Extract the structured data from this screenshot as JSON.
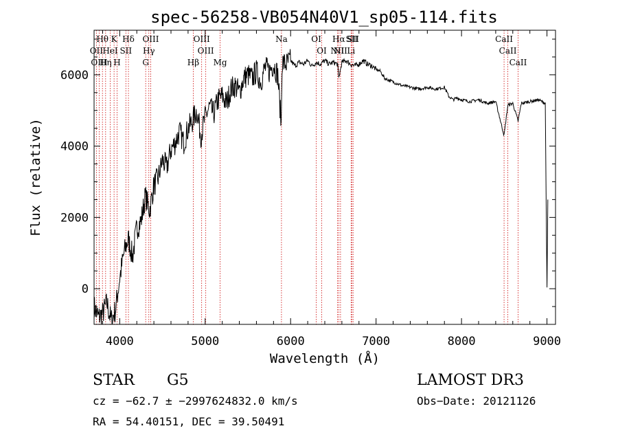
{
  "chart_data": {
    "type": "line",
    "title": "spec-56258-VB054N40V1_sp05-114.fits",
    "xlabel": "Wavelength (Å)",
    "ylabel": "Flux (relative)",
    "xlim": [
      3700,
      9100
    ],
    "ylim": [
      -1000,
      7250
    ],
    "xticks": [
      4000,
      5000,
      6000,
      7000,
      8000,
      9000
    ],
    "yticks": [
      0,
      2000,
      4000,
      6000
    ],
    "spectrum": {
      "name": "flux",
      "x": [
        3700,
        3750,
        3800,
        3850,
        3900,
        3950,
        4000,
        4050,
        4100,
        4150,
        4200,
        4250,
        4300,
        4350,
        4400,
        4450,
        4500,
        4550,
        4600,
        4650,
        4700,
        4750,
        4800,
        4850,
        4900,
        4950,
        5000,
        5050,
        5100,
        5150,
        5200,
        5250,
        5300,
        5350,
        5400,
        5450,
        5500,
        5550,
        5600,
        5650,
        5700,
        5750,
        5800,
        5850,
        5890,
        5900,
        5950,
        6000,
        6050,
        6100,
        6150,
        6200,
        6250,
        6300,
        6350,
        6400,
        6450,
        6500,
        6550,
        6563,
        6600,
        6650,
        6700,
        6750,
        6800,
        6850,
        6900,
        6950,
        7000,
        7050,
        7100,
        7200,
        7300,
        7400,
        7500,
        7600,
        7700,
        7800,
        7850,
        7900,
        7950,
        8000,
        8100,
        8200,
        8300,
        8400,
        8498,
        8542,
        8600,
        8662,
        8700,
        8800,
        8900,
        8980,
        9000,
        9010
      ],
      "y": [
        -500,
        -800,
        -700,
        -400,
        -900,
        -600,
        300,
        1000,
        1400,
        900,
        1700,
        1900,
        2600,
        2200,
        2900,
        3100,
        3600,
        3400,
        3900,
        4100,
        4400,
        4100,
        4500,
        4700,
        5000,
        4300,
        4800,
        5100,
        4900,
        5300,
        5400,
        5200,
        5600,
        5700,
        5500,
        5900,
        6000,
        5900,
        6100,
        5800,
        6200,
        6100,
        6300,
        6000,
        4600,
        6350,
        6300,
        6400,
        6250,
        6350,
        6300,
        6400,
        6250,
        6350,
        6300,
        6400,
        6300,
        6350,
        6300,
        5900,
        6350,
        6400,
        6300,
        6250,
        6300,
        6400,
        6300,
        6250,
        6150,
        6100,
        5900,
        5800,
        5700,
        5650,
        5600,
        5650,
        5600,
        5650,
        5400,
        5300,
        5350,
        5300,
        5250,
        5300,
        5200,
        5250,
        4300,
        5150,
        5200,
        4700,
        5200,
        5250,
        5300,
        5200,
        0,
        2500
      ]
    },
    "line_markers": [
      {
        "label": "Hθ",
        "wavelength": 3798
      },
      {
        "label": "OII",
        "wavelength": 3727
      },
      {
        "label": "OIII",
        "wavelength": 3760
      },
      {
        "label": "Hη",
        "wavelength": 3835
      },
      {
        "label": "HeI",
        "wavelength": 3889
      },
      {
        "label": "K",
        "wavelength": 3934
      },
      {
        "label": "H",
        "wavelength": 3969
      },
      {
        "label": "SII",
        "wavelength": 4072
      },
      {
        "label": "Hδ",
        "wavelength": 4102
      },
      {
        "label": "G",
        "wavelength": 4304
      },
      {
        "label": "Hγ",
        "wavelength": 4341
      },
      {
        "label": "OIII",
        "wavelength": 4363
      },
      {
        "label": "Hβ",
        "wavelength": 4861
      },
      {
        "label": "OIII",
        "wavelength": 4959
      },
      {
        "label": "OIII",
        "wavelength": 5007
      },
      {
        "label": "Mg",
        "wavelength": 5175
      },
      {
        "label": "Na",
        "wavelength": 5893
      },
      {
        "label": "OI",
        "wavelength": 6300
      },
      {
        "label": "OI",
        "wavelength": 6364
      },
      {
        "label": "NII",
        "wavelength": 6548
      },
      {
        "label": "Hα",
        "wavelength": 6563
      },
      {
        "label": "NII",
        "wavelength": 6584
      },
      {
        "label": "Li",
        "wavelength": 6708
      },
      {
        "label": "SII",
        "wavelength": 6716
      },
      {
        "label": "SII",
        "wavelength": 6731
      },
      {
        "label": "CaII",
        "wavelength": 8498
      },
      {
        "label": "CaII",
        "wavelength": 8542
      },
      {
        "label": "CaII",
        "wavelength": 8662
      }
    ]
  },
  "info": {
    "object_class": "STAR",
    "subclass": "G5",
    "survey": "LAMOST DR3",
    "cz_line": "cz = −62.7 ± −2997624832.0 km/s",
    "obs_date_line": "Obs−Date: 20121126",
    "radec_line": "RA =  54.40151, DEC =  39.50491"
  },
  "colors": {
    "axis": "#000000",
    "spectrum": "#000000",
    "marker": "#cc0000"
  }
}
